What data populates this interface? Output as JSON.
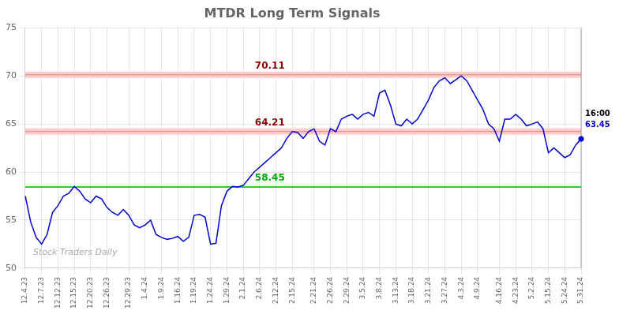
{
  "chart_data": {
    "type": "line",
    "title": "MTDR Long Term Signals",
    "categories": [
      "12.4.23",
      null,
      null,
      "12.7.23",
      null,
      null,
      "12.12.23",
      null,
      null,
      "12.15.23",
      null,
      null,
      "12.20.23",
      null,
      null,
      "12.26.23",
      null,
      null,
      null,
      "12.29.23",
      null,
      null,
      "1.4.24",
      null,
      null,
      "1.9.24",
      null,
      null,
      "1.16.24",
      null,
      null,
      "1.19.24",
      null,
      null,
      "1.24.24",
      null,
      null,
      "1.29.24",
      null,
      null,
      "2.1.24",
      null,
      null,
      "2.6.24",
      null,
      null,
      "2.12.24",
      null,
      null,
      "2.15.24",
      null,
      null,
      null,
      "2.21.24",
      null,
      null,
      "2.26.24",
      null,
      null,
      "2.29.24",
      null,
      null,
      "3.5.24",
      null,
      null,
      "3.8.24",
      null,
      null,
      "3.13.24",
      null,
      null,
      "3.18.24",
      null,
      null,
      "3.21.24",
      null,
      null,
      "3.27.24",
      null,
      null,
      "4.3.24",
      null,
      null,
      "4.9.24",
      null,
      null,
      null,
      "4.16.24",
      null,
      null,
      "4.23.24",
      null,
      null,
      "5.2.24",
      null,
      null,
      "5.15.24",
      null,
      null,
      "5.24.24",
      null,
      null,
      "5.31.24"
    ],
    "series": [
      {
        "color": "#0000cc",
        "values": [
          57.5,
          54.8,
          53.2,
          52.5,
          53.5,
          55.8,
          56.5,
          57.5,
          57.8,
          58.5,
          58.0,
          57.2,
          56.8,
          57.5,
          57.2,
          56.3,
          55.8,
          55.5,
          56.1,
          55.5,
          54.5,
          54.2,
          54.5,
          55.0,
          53.5,
          53.2,
          53.0,
          53.1,
          53.3,
          52.8,
          53.2,
          55.5,
          55.6,
          55.3,
          52.5,
          52.6,
          56.5,
          58.0,
          58.5,
          58.45,
          58.6,
          59.3,
          60.0,
          60.5,
          61.0,
          61.5,
          62.0,
          62.5,
          63.5,
          64.2,
          64.1,
          63.5,
          64.2,
          64.5,
          63.2,
          62.8,
          64.5,
          64.2,
          65.5,
          65.8,
          66.0,
          65.5,
          66.0,
          66.2,
          65.8,
          68.2,
          68.5,
          67.0,
          65.0,
          64.8,
          65.5,
          65.0,
          65.5,
          66.5,
          67.5,
          68.8,
          69.5,
          69.8,
          69.2,
          69.6,
          70.0,
          69.5,
          68.5,
          67.5,
          66.5,
          65.0,
          64.5,
          63.2,
          65.5,
          65.5,
          66.0,
          65.5,
          64.8,
          65.0,
          65.2,
          64.5,
          62.0,
          62.5,
          62.0,
          61.5,
          61.8,
          62.8,
          63.45
        ]
      }
    ],
    "reference_lines": [
      {
        "value": 70.11,
        "label": "70.11",
        "color": "#880000",
        "line_color": "#dd8888",
        "band_color": "#ffcccc"
      },
      {
        "value": 64.21,
        "label": "64.21",
        "color": "#880000",
        "line_color": "#dd8888",
        "band_color": "#ffcccc"
      },
      {
        "value": 58.45,
        "label": "58.45",
        "color": "#00aa00",
        "line_color": "#00aa00"
      }
    ],
    "last_point": {
      "value": 63.45,
      "label": "63.45",
      "time": "16:00",
      "color": "#0000cc"
    },
    "watermark": {
      "text": "Stock Traders Daily",
      "color": "#aaaaaa"
    },
    "ylim": [
      50,
      75
    ],
    "yticks": [
      50,
      55,
      60,
      65,
      70,
      75
    ],
    "grid": true
  }
}
